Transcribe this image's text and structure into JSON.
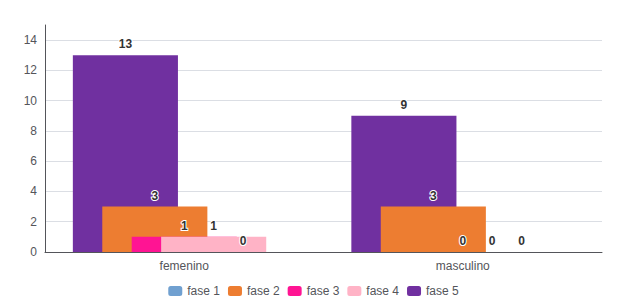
{
  "chart_data": {
    "type": "bar",
    "categories": [
      "femenino",
      "masculino"
    ],
    "series": [
      {
        "name": "fase 5",
        "color": "#7030A0",
        "values": [
          13,
          9
        ]
      },
      {
        "name": "fase 2",
        "color": "#ED7D31",
        "values": [
          3,
          3
        ]
      },
      {
        "name": "fase 3",
        "color": "#FF1493",
        "values": [
          1,
          0
        ]
      },
      {
        "name": "fase 4",
        "color": "#FFB3C6",
        "values": [
          1,
          0
        ]
      },
      {
        "name": "fase 1",
        "color": "#70A0D0",
        "values": [
          0,
          0
        ]
      }
    ],
    "ylim": [
      0,
      15
    ],
    "yticks": [
      0,
      2,
      4,
      6,
      8,
      10,
      12,
      14
    ],
    "grid": true,
    "legend": "bottom",
    "data_labels": true
  }
}
